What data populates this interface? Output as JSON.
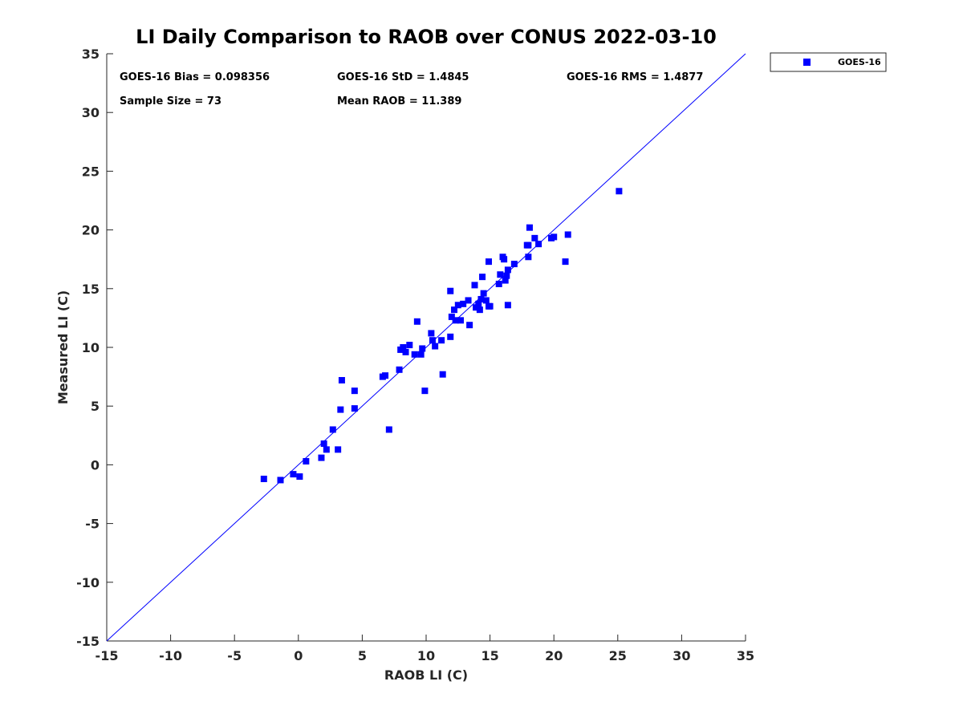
{
  "chart_data": {
    "type": "scatter",
    "title": "LI Daily Comparison to RAOB over CONUS 2022-03-10",
    "xlabel": "RAOB LI (C)",
    "ylabel": "Measured LI (C)",
    "xlim": [
      -15,
      35
    ],
    "ylim": [
      -15,
      35
    ],
    "xticks": [
      -15,
      -10,
      -5,
      0,
      5,
      10,
      15,
      20,
      25,
      30,
      35
    ],
    "yticks": [
      -15,
      -10,
      -5,
      0,
      5,
      10,
      15,
      20,
      25,
      30,
      35
    ],
    "grid": false,
    "legend_position": "outside-top-right",
    "reference_line": {
      "label": "1:1 line",
      "from": [
        -15,
        -15
      ],
      "to": [
        35,
        35
      ],
      "color": "#0000ff"
    },
    "stats": {
      "bias": "GOES-16 Bias = 0.098356",
      "std": "GOES-16 StD = 1.4845",
      "rms": "GOES-16 RMS = 1.4877",
      "sample_size": "Sample Size = 73",
      "mean_raob": "Mean RAOB = 11.389"
    },
    "series": [
      {
        "name": "GOES-16",
        "color": "#0000ff",
        "marker": "square",
        "x": [
          -2.7,
          -1.4,
          -0.4,
          0.1,
          0.6,
          1.8,
          2.0,
          2.2,
          2.7,
          3.1,
          3.3,
          3.4,
          4.4,
          4.4,
          6.6,
          6.8,
          7.1,
          7.9,
          8.0,
          8.2,
          8.4,
          8.7,
          9.1,
          9.3,
          9.6,
          9.7,
          9.9,
          10.4,
          10.5,
          10.7,
          11.2,
          11.3,
          11.9,
          11.9,
          12.0,
          12.2,
          12.3,
          12.5,
          12.7,
          12.9,
          13.3,
          13.4,
          13.8,
          13.9,
          14.1,
          14.2,
          14.3,
          14.4,
          14.5,
          14.7,
          14.9,
          14.9,
          15.0,
          15.7,
          15.8,
          16.0,
          16.1,
          16.2,
          16.4,
          16.4,
          16.9,
          18.0,
          18.1,
          18.0,
          18.5,
          18.8,
          19.8,
          20.0,
          20.9,
          21.1,
          25.1,
          17.9,
          16.3
        ],
        "y": [
          -1.2,
          -1.3,
          -0.8,
          -1.0,
          0.3,
          0.6,
          1.8,
          1.3,
          3.0,
          1.3,
          4.7,
          7.2,
          6.3,
          4.8,
          7.5,
          7.6,
          3.0,
          8.1,
          9.8,
          10.0,
          9.6,
          10.2,
          9.4,
          12.2,
          9.4,
          9.9,
          6.3,
          11.2,
          10.6,
          10.1,
          10.6,
          7.7,
          14.8,
          10.9,
          12.6,
          13.2,
          12.3,
          13.6,
          12.3,
          13.7,
          14.0,
          11.9,
          15.3,
          13.4,
          13.7,
          13.2,
          14.1,
          16.0,
          14.6,
          14.0,
          13.5,
          17.3,
          13.5,
          15.4,
          16.2,
          17.7,
          17.5,
          15.7,
          16.6,
          13.6,
          17.1,
          18.7,
          20.2,
          17.7,
          19.3,
          18.8,
          19.3,
          19.4,
          17.3,
          19.6,
          23.3,
          18.7,
          16.1
        ]
      }
    ]
  }
}
